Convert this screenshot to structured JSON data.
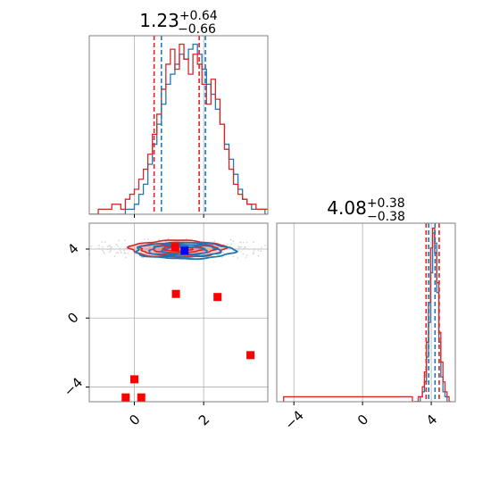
{
  "chart_data": [
    {
      "type": "histogram",
      "panel": "top-left marginal",
      "title": {
        "value": "1.23",
        "upper": "+0.64",
        "lower": "−0.66"
      },
      "xlim": [
        -1.3,
        3.85
      ],
      "grid": true,
      "quantile_lines": {
        "red": [
          0.57,
          1.87
        ],
        "blue": [
          0.78,
          2.05
        ]
      },
      "series": [
        {
          "color": "#1f77b4",
          "x_start": -1.3,
          "bin_width": 0.13,
          "counts": [
            0,
            0,
            0,
            0,
            0,
            0,
            0,
            0,
            1,
            1,
            2,
            4,
            6,
            10,
            14,
            18,
            22,
            26,
            28,
            30,
            32,
            31,
            33,
            34,
            32,
            29,
            26,
            24,
            21,
            18,
            14,
            11,
            8,
            5,
            3,
            2,
            1,
            1,
            1,
            0,
            0,
            0
          ]
        },
        {
          "color": "#d62728",
          "x_start": -1.3,
          "bin_width": 0.13,
          "counts": [
            0,
            0,
            1,
            1,
            1,
            2,
            2,
            1,
            3,
            4,
            5,
            7,
            9,
            12,
            16,
            20,
            25,
            30,
            33,
            29,
            34,
            31,
            28,
            32,
            30,
            26,
            22,
            27,
            23,
            18,
            13,
            9,
            6,
            4,
            3,
            2,
            2,
            1,
            1,
            1,
            0,
            0
          ]
        }
      ]
    },
    {
      "type": "histogram",
      "panel": "bottom-right marginal",
      "title": {
        "value": "4.08",
        "upper": "+0.38",
        "lower": "−0.38"
      },
      "xlim": [
        -5,
        5.4
      ],
      "x_ticks": [
        "−4",
        "0",
        "4"
      ],
      "x_tick_values": [
        -4,
        0,
        4
      ],
      "grid": true,
      "quantile_lines": {
        "red": [
          3.7,
          4.46
        ],
        "blue": [
          3.85,
          4.22
        ]
      },
      "series": [
        {
          "color": "#1f77b4",
          "x_start": 3.0,
          "bin_width": 0.12,
          "counts": [
            0,
            0,
            0,
            1,
            2,
            4,
            9,
            16,
            26,
            34,
            32,
            22,
            12,
            5,
            2,
            1,
            0,
            0
          ]
        },
        {
          "color": "#d62728",
          "x_start": 3.0,
          "bin_width": 0.12,
          "counts": [
            0,
            0,
            1,
            1,
            3,
            6,
            12,
            20,
            31,
            35,
            30,
            24,
            14,
            8,
            4,
            2,
            1,
            0
          ]
        },
        {
          "color": "#d62728",
          "x_start": -4.6,
          "bin_width": 0.5,
          "counts": [
            1,
            1,
            1,
            1,
            1,
            1,
            1,
            1,
            1,
            1,
            1,
            1,
            1,
            1,
            1,
            0
          ]
        }
      ]
    },
    {
      "type": "scatter",
      "panel": "bottom-left 2D contour",
      "xlim": [
        -1.3,
        3.85
      ],
      "ylim": [
        -4.85,
        5.5
      ],
      "x_ticks": [
        "0",
        "2"
      ],
      "x_tick_values": [
        0,
        2
      ],
      "y_ticks": [
        "4",
        "0",
        "−4"
      ],
      "y_tick_values": [
        4,
        0,
        -4
      ],
      "grid": true,
      "contours": [
        {
          "color": "#d62728",
          "center": [
            1.25,
            4.02
          ],
          "levels": [
            [
              2.75,
              0.48
            ],
            [
              2.2,
              0.36
            ],
            [
              1.45,
              0.24
            ],
            [
              0.85,
              0.14
            ]
          ]
        },
        {
          "color": "#1f77b4",
          "center": [
            1.45,
            3.9
          ],
          "levels": [
            [
              2.85,
              0.46
            ],
            [
              2.05,
              0.34
            ],
            [
              1.3,
              0.22
            ]
          ]
        }
      ],
      "points": [
        {
          "x": 1.18,
          "y": 4.12,
          "color": "red"
        },
        {
          "x": 1.2,
          "y": 1.4,
          "color": "red"
        },
        {
          "x": 2.4,
          "y": 1.22,
          "color": "red"
        },
        {
          "x": 3.35,
          "y": -2.15,
          "color": "red"
        },
        {
          "x": 0.0,
          "y": -3.55,
          "color": "red"
        },
        {
          "x": -0.25,
          "y": -4.6,
          "color": "red"
        },
        {
          "x": 0.2,
          "y": -4.6,
          "color": "red"
        },
        {
          "x": 1.45,
          "y": 3.9,
          "color": "blue"
        }
      ]
    }
  ]
}
